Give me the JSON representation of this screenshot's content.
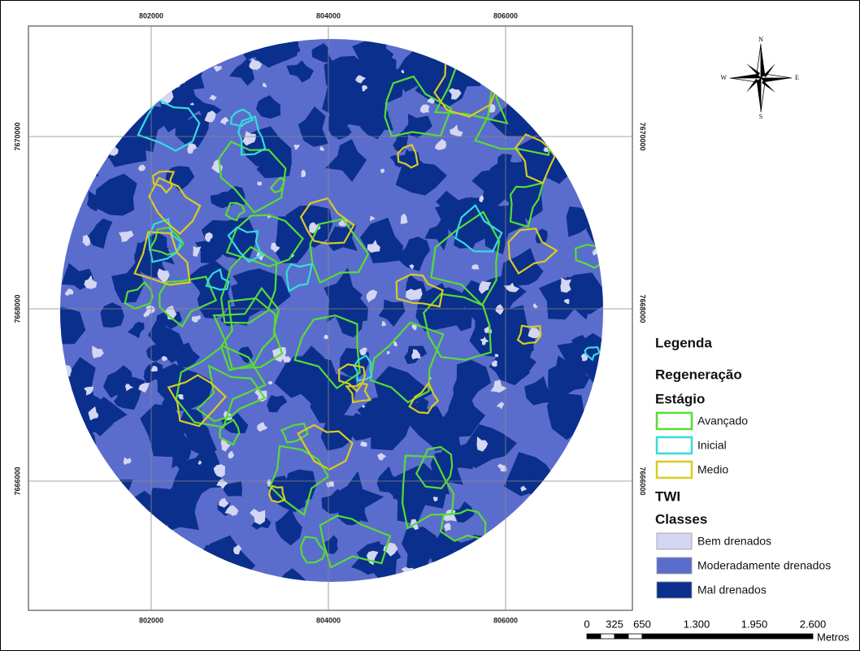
{
  "map": {
    "x_labels": [
      "802000",
      "804000",
      "806000"
    ],
    "y_labels": [
      "7670000",
      "7668000",
      "7666000"
    ],
    "compass": {
      "n": "N",
      "s": "S",
      "w": "W",
      "e": "E"
    },
    "legend": {
      "title": "Legenda",
      "group1": "Regeneração",
      "group1_sub": "Estágio",
      "group1_items": [
        {
          "label": "Avançado",
          "color": "#55dd33"
        },
        {
          "label": "Inicial",
          "color": "#33dddd"
        },
        {
          "label": "Medio",
          "color": "#d8cc22"
        }
      ],
      "group2": "TWI",
      "group2_sub": "Classes",
      "group2_items": [
        {
          "label": "Bem drenados",
          "color": "#d4d6f2"
        },
        {
          "label": "Moderadamente drenados",
          "color": "#5b6dcc"
        },
        {
          "label": "Mal drenados",
          "color": "#0b2f8c"
        }
      ]
    },
    "scale_bar": {
      "labels": [
        "0",
        "325",
        "650",
        "1.300",
        "1.950",
        "2.600"
      ],
      "unit": "Metros"
    }
  }
}
